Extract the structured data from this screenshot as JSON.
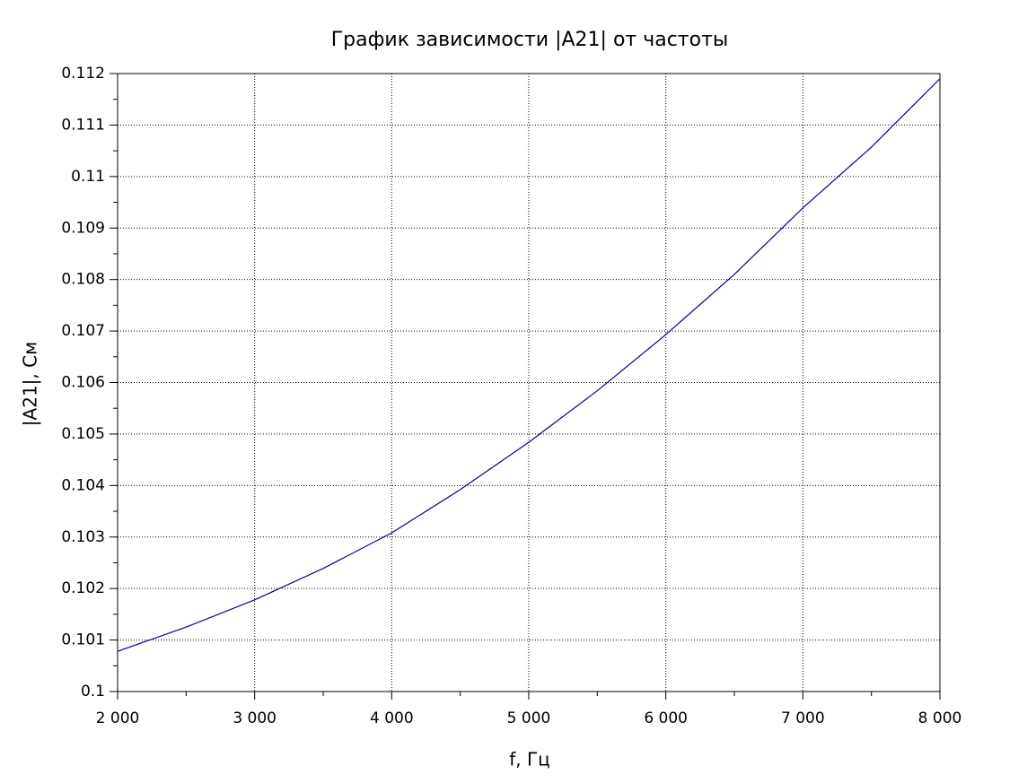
{
  "chart_data": {
    "type": "line",
    "title": "График зависимости |A21| от частоты",
    "x_label": "f, Гц",
    "y_label": "|A21|, См",
    "x": [
      2000,
      2500,
      3000,
      3500,
      4000,
      4500,
      5000,
      5500,
      6000,
      6500,
      7000,
      7500,
      8000
    ],
    "values": [
      0.10078,
      0.10125,
      0.10178,
      0.10239,
      0.10308,
      0.10392,
      0.10484,
      0.10584,
      0.10693,
      0.1081,
      0.10939,
      0.11057,
      0.1119
    ],
    "color": "#0000a8",
    "xlim": [
      2000,
      8000
    ],
    "xticks": [
      {
        "value": 2000,
        "label": "2 000"
      },
      {
        "value": 3000,
        "label": "3 000"
      },
      {
        "value": 4000,
        "label": "4 000"
      },
      {
        "value": 5000,
        "label": "5 000"
      },
      {
        "value": 6000,
        "label": "6 000"
      },
      {
        "value": 7000,
        "label": "7 000"
      },
      {
        "value": 8000,
        "label": "8 000"
      }
    ],
    "ylim": [
      0.1,
      0.112
    ],
    "yticks": [
      0.1,
      0.101,
      0.102,
      0.103,
      0.104,
      0.105,
      0.106,
      0.107,
      0.108,
      0.109,
      0.11,
      0.111,
      0.112
    ],
    "grid": true
  }
}
